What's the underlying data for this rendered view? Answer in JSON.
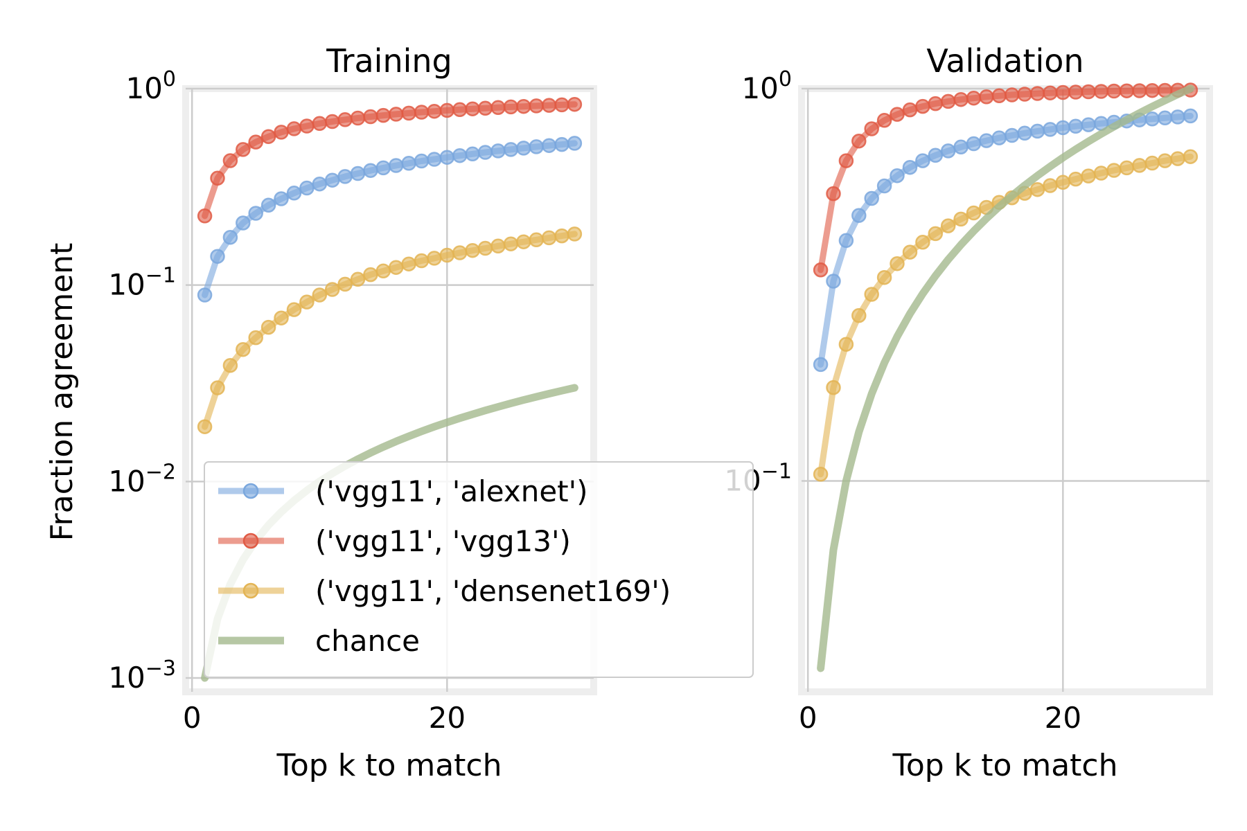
{
  "chart_data": [
    {
      "type": "line",
      "title": "Training",
      "xlabel": "Top k to match",
      "ylabel": "Fraction agreement",
      "yscale": "log",
      "xlim": [
        -0.5,
        31.5
      ],
      "ylim": [
        0.00085,
        1.0
      ],
      "xticks": [
        0,
        20
      ],
      "yticks": [
        0.001,
        0.01,
        0.1,
        1
      ],
      "ytick_labels": [
        {
          "base": "10",
          "exp": "−3"
        },
        {
          "base": "10",
          "exp": "−2"
        },
        {
          "base": "10",
          "exp": "−1"
        },
        {
          "base": "10",
          "exp": "0"
        }
      ],
      "grid": true,
      "legend": "lower-left",
      "x": [
        1,
        2,
        3,
        4,
        5,
        6,
        7,
        8,
        9,
        10,
        11,
        12,
        13,
        14,
        15,
        16,
        17,
        18,
        19,
        20,
        21,
        22,
        23,
        24,
        25,
        26,
        27,
        28,
        29,
        30
      ],
      "series": [
        {
          "name": "('vgg11', 'alexnet')",
          "color": "#7aa7dd",
          "markers": true,
          "values": [
            0.089,
            0.14,
            0.175,
            0.207,
            0.232,
            0.255,
            0.275,
            0.294,
            0.312,
            0.327,
            0.342,
            0.357,
            0.37,
            0.383,
            0.395,
            0.406,
            0.417,
            0.428,
            0.437,
            0.447,
            0.456,
            0.465,
            0.474,
            0.482,
            0.49,
            0.498,
            0.506,
            0.513,
            0.52,
            0.527
          ]
        },
        {
          "name": "('vgg11', 'vgg13')",
          "color": "#e05a44",
          "markers": true,
          "values": [
            0.225,
            0.35,
            0.43,
            0.49,
            0.535,
            0.57,
            0.6,
            0.625,
            0.645,
            0.665,
            0.68,
            0.695,
            0.708,
            0.72,
            0.731,
            0.741,
            0.75,
            0.759,
            0.767,
            0.775,
            0.782,
            0.789,
            0.795,
            0.801,
            0.807,
            0.812,
            0.817,
            0.822,
            0.827,
            0.832
          ]
        },
        {
          "name": "('vgg11', 'densenet169')",
          "color": "#e3b454",
          "markers": true,
          "values": [
            0.019,
            0.03,
            0.039,
            0.047,
            0.054,
            0.061,
            0.068,
            0.075,
            0.082,
            0.089,
            0.095,
            0.101,
            0.107,
            0.113,
            0.118,
            0.123,
            0.128,
            0.133,
            0.137,
            0.142,
            0.146,
            0.15,
            0.154,
            0.158,
            0.162,
            0.166,
            0.17,
            0.174,
            0.178,
            0.182
          ]
        },
        {
          "name": "chance",
          "color": "#a4b98d",
          "markers": false,
          "values": [
            0.001,
            0.002,
            0.003,
            0.004,
            0.005,
            0.006,
            0.007,
            0.008,
            0.009,
            0.01,
            0.011,
            0.012,
            0.013,
            0.014,
            0.015,
            0.016,
            0.017,
            0.018,
            0.019,
            0.02,
            0.021,
            0.022,
            0.023,
            0.024,
            0.025,
            0.026,
            0.027,
            0.028,
            0.029,
            0.03
          ]
        }
      ]
    },
    {
      "type": "line",
      "title": "Validation",
      "xlabel": "Top k to match",
      "ylabel": "",
      "yscale": "log",
      "xlim": [
        -0.5,
        31.5
      ],
      "ylim": [
        0.029,
        1.0
      ],
      "xticks": [
        0,
        20
      ],
      "yticks": [
        0.1,
        1
      ],
      "ytick_labels": [
        {
          "base": "10",
          "exp": "−1"
        },
        {
          "base": "10",
          "exp": "0"
        }
      ],
      "grid": true,
      "x": [
        1,
        2,
        3,
        4,
        5,
        6,
        7,
        8,
        9,
        10,
        11,
        12,
        13,
        14,
        15,
        16,
        17,
        18,
        19,
        20,
        21,
        22,
        23,
        24,
        25,
        26,
        27,
        28,
        29,
        30
      ],
      "series": [
        {
          "name": "('vgg11', 'alexnet')",
          "color": "#7aa7dd",
          "markers": true,
          "values": [
            0.198,
            0.323,
            0.41,
            0.475,
            0.525,
            0.565,
            0.6,
            0.63,
            0.655,
            0.676,
            0.694,
            0.71,
            0.724,
            0.737,
            0.749,
            0.76,
            0.77,
            0.779,
            0.787,
            0.795,
            0.802,
            0.809,
            0.815,
            0.821,
            0.827,
            0.832,
            0.837,
            0.842,
            0.847,
            0.852
          ]
        },
        {
          "name": "('vgg11', 'vgg13')",
          "color": "#e05a44",
          "markers": true,
          "values": [
            0.345,
            0.54,
            0.655,
            0.735,
            0.79,
            0.83,
            0.86,
            0.883,
            0.901,
            0.916,
            0.928,
            0.938,
            0.946,
            0.953,
            0.959,
            0.964,
            0.968,
            0.972,
            0.975,
            0.978,
            0.98,
            0.982,
            0.984,
            0.986,
            0.987,
            0.988,
            0.989,
            0.99,
            0.991,
            0.992
          ]
        },
        {
          "name": "('vgg11', 'densenet169')",
          "color": "#e3b454",
          "markers": true,
          "values": [
            0.104,
            0.173,
            0.223,
            0.264,
            0.299,
            0.33,
            0.358,
            0.383,
            0.406,
            0.427,
            0.447,
            0.465,
            0.482,
            0.498,
            0.513,
            0.527,
            0.541,
            0.553,
            0.566,
            0.577,
            0.588,
            0.599,
            0.609,
            0.619,
            0.628,
            0.637,
            0.646,
            0.655,
            0.663,
            0.671
          ]
        },
        {
          "name": "chance",
          "color": "#a4b98d",
          "markers": false,
          "values": [
            0.0333,
            0.0667,
            0.1,
            0.1333,
            0.1667,
            0.2,
            0.2333,
            0.2667,
            0.3,
            0.3333,
            0.3667,
            0.4,
            0.4333,
            0.4667,
            0.5,
            0.5333,
            0.5667,
            0.6,
            0.6333,
            0.6667,
            0.7,
            0.7333,
            0.7667,
            0.8,
            0.8333,
            0.8667,
            0.9,
            0.9333,
            0.9667,
            1.0
          ]
        }
      ]
    }
  ]
}
